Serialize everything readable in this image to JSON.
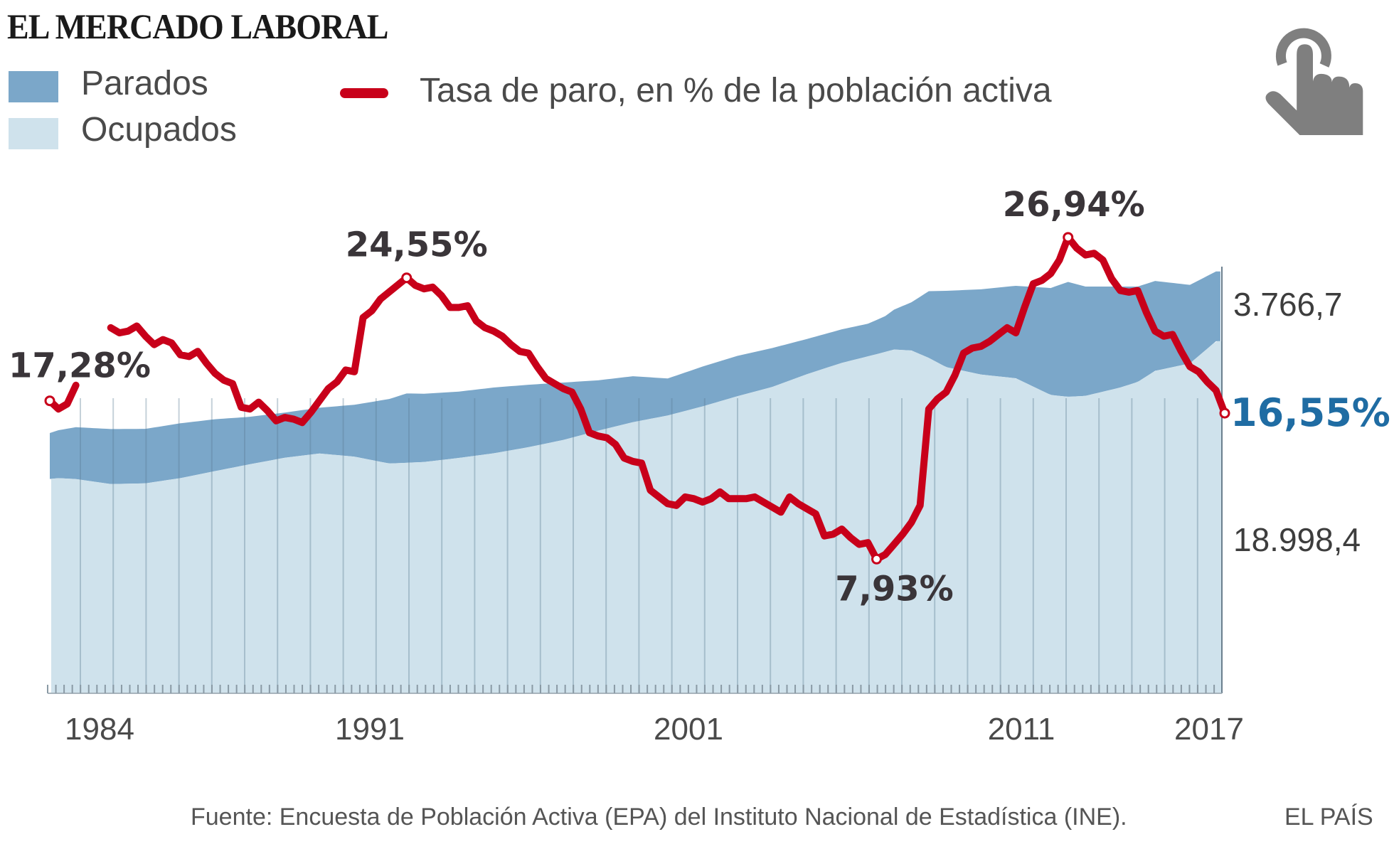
{
  "header": {
    "title": "EL MERCADO LABORAL",
    "legend": [
      {
        "label": "Parados",
        "color": "#7ba7c9"
      },
      {
        "label": "Ocupados",
        "color": "#cfe2ec"
      },
      {
        "label": "Tasa de paro, en % de la población activa",
        "color": "#c8001a"
      }
    ],
    "icon": "touch-hand-icon"
  },
  "chart_data": {
    "type": "area",
    "title": "EL MERCADO LABORAL",
    "xlabel": "",
    "ylabel": "",
    "x_tick_labels": [
      "1984",
      "1991",
      "2001",
      "2011",
      "2017"
    ],
    "x_range": [
      "1983",
      "2017"
    ],
    "grid": true,
    "series": [
      {
        "name": "Ocupados",
        "type": "area",
        "unit": "miles",
        "color": "#cfe2ec",
        "end_label": "18.998,4",
        "points": [
          [
            1983.0,
            11420
          ],
          [
            1984.0,
            11610
          ],
          [
            1984.5,
            11560
          ],
          [
            1985.5,
            11290
          ],
          [
            1986.5,
            11330
          ],
          [
            1987.5,
            11610
          ],
          [
            1988.5,
            11990
          ],
          [
            1989.5,
            12360
          ],
          [
            1990.5,
            12710
          ],
          [
            1991.5,
            12940
          ],
          [
            1992.5,
            12770
          ],
          [
            1993.5,
            12400
          ],
          [
            1994.5,
            12480
          ],
          [
            1995.5,
            12700
          ],
          [
            1996.5,
            12950
          ],
          [
            1997.5,
            13280
          ],
          [
            1998.5,
            13670
          ],
          [
            1999.5,
            14170
          ],
          [
            2000.5,
            14630
          ],
          [
            2001.5,
            14990
          ],
          [
            2002.5,
            15480
          ],
          [
            2003.5,
            16030
          ],
          [
            2004.5,
            16530
          ],
          [
            2005.5,
            17220
          ],
          [
            2006.5,
            17830
          ],
          [
            2007.5,
            18300
          ],
          [
            2008.0,
            18550
          ],
          [
            2008.5,
            18500
          ],
          [
            2009.0,
            18100
          ],
          [
            2009.5,
            17600
          ],
          [
            2010.5,
            17200
          ],
          [
            2011.5,
            17000
          ],
          [
            2012.5,
            16100
          ],
          [
            2013.0,
            16000
          ],
          [
            2013.5,
            16050
          ],
          [
            2014.5,
            16500
          ],
          [
            2015.0,
            16800
          ],
          [
            2015.5,
            17400
          ],
          [
            2016.5,
            17800
          ],
          [
            2017.25,
            18998
          ]
        ]
      },
      {
        "name": "Parados",
        "type": "area-stacked",
        "unit": "miles",
        "color": "#7ba7c9",
        "end_label": "3.766,7",
        "points": [
          [
            1983.75,
            2480
          ],
          [
            1984.5,
            2800
          ],
          [
            1985.5,
            2970
          ],
          [
            1986.5,
            2940
          ],
          [
            1987.5,
            2960
          ],
          [
            1988.5,
            2800
          ],
          [
            1989.5,
            2560
          ],
          [
            1990.5,
            2440
          ],
          [
            1991.5,
            2470
          ],
          [
            1992.5,
            2800
          ],
          [
            1993.5,
            3480
          ],
          [
            1994.0,
            3740
          ],
          [
            1995.5,
            3580
          ],
          [
            1996.5,
            3550
          ],
          [
            1997.5,
            3370
          ],
          [
            1998.5,
            3100
          ],
          [
            1999.5,
            2720
          ],
          [
            2000.5,
            2480
          ],
          [
            2001.5,
            2000
          ],
          [
            2002.5,
            2150
          ],
          [
            2003.5,
            2180
          ],
          [
            2004.5,
            2100
          ],
          [
            2005.5,
            1900
          ],
          [
            2006.5,
            1810
          ],
          [
            2007.25,
            1760
          ],
          [
            2007.75,
            1930
          ],
          [
            2008.5,
            2600
          ],
          [
            2009.0,
            3600
          ],
          [
            2009.5,
            4120
          ],
          [
            2010.5,
            4600
          ],
          [
            2011.5,
            4990
          ],
          [
            2012.5,
            5770
          ],
          [
            2013.0,
            6200
          ],
          [
            2013.5,
            5900
          ],
          [
            2014.5,
            5450
          ],
          [
            2015.5,
            4850
          ],
          [
            2016.5,
            4240
          ],
          [
            2017.25,
            3767
          ]
        ]
      },
      {
        "name": "Tasa de paro, en % de la población activa",
        "type": "line",
        "unit": "%",
        "color": "#c8001a",
        "points": [
          [
            1983.75,
            17.28
          ],
          [
            1984.0,
            16.8
          ],
          [
            1984.25,
            17.1
          ],
          [
            1984.5,
            18.2
          ],
          [
            1985.0,
            20.8
          ],
          [
            1985.25,
            21.5
          ],
          [
            1985.5,
            21.6
          ],
          [
            1985.75,
            21.3
          ],
          [
            1986.0,
            21.4
          ],
          [
            1986.25,
            21.7
          ],
          [
            1986.5,
            21.1
          ],
          [
            1986.75,
            20.6
          ],
          [
            1987.0,
            20.9
          ],
          [
            1987.25,
            20.7
          ],
          [
            1987.5,
            20.0
          ],
          [
            1987.75,
            19.9
          ],
          [
            1988.0,
            20.2
          ],
          [
            1988.25,
            19.5
          ],
          [
            1988.5,
            18.9
          ],
          [
            1988.75,
            18.5
          ],
          [
            1989.0,
            18.3
          ],
          [
            1989.25,
            16.9
          ],
          [
            1989.5,
            16.8
          ],
          [
            1989.75,
            17.2
          ],
          [
            1990.0,
            16.7
          ],
          [
            1990.25,
            16.1
          ],
          [
            1990.5,
            16.3
          ],
          [
            1990.75,
            16.2
          ],
          [
            1991.0,
            16.0
          ],
          [
            1991.25,
            16.6
          ],
          [
            1991.5,
            17.3
          ],
          [
            1991.75,
            18.0
          ],
          [
            1992.0,
            18.4
          ],
          [
            1992.25,
            19.1
          ],
          [
            1992.5,
            19.0
          ],
          [
            1992.75,
            22.2
          ],
          [
            1993.0,
            22.6
          ],
          [
            1993.25,
            23.3
          ],
          [
            1994.0,
            24.55
          ],
          [
            1994.25,
            24.1
          ],
          [
            1994.5,
            23.9
          ],
          [
            1994.75,
            24.0
          ],
          [
            1995.0,
            23.5
          ],
          [
            1995.25,
            22.8
          ],
          [
            1995.5,
            22.8
          ],
          [
            1995.75,
            22.9
          ],
          [
            1996.0,
            22.0
          ],
          [
            1996.25,
            21.6
          ],
          [
            1996.5,
            21.4
          ],
          [
            1996.75,
            21.1
          ],
          [
            1997.0,
            20.6
          ],
          [
            1997.25,
            20.2
          ],
          [
            1997.5,
            20.1
          ],
          [
            1997.75,
            19.3
          ],
          [
            1998.0,
            18.6
          ],
          [
            1998.25,
            18.3
          ],
          [
            1998.5,
            18.0
          ],
          [
            1998.75,
            17.8
          ],
          [
            1999.0,
            16.8
          ],
          [
            1999.25,
            15.4
          ],
          [
            1999.5,
            15.2
          ],
          [
            1999.75,
            15.1
          ],
          [
            2000.0,
            14.7
          ],
          [
            2000.25,
            13.9
          ],
          [
            2000.5,
            13.7
          ],
          [
            2000.75,
            13.6
          ],
          [
            2001.0,
            12.0
          ],
          [
            2001.25,
            11.6
          ],
          [
            2001.5,
            11.2
          ],
          [
            2001.75,
            11.1
          ],
          [
            2002.0,
            11.6
          ],
          [
            2002.25,
            11.5
          ],
          [
            2002.5,
            11.3
          ],
          [
            2002.75,
            11.5
          ],
          [
            2003.0,
            11.9
          ],
          [
            2003.25,
            11.5
          ],
          [
            2003.5,
            11.5
          ],
          [
            2003.75,
            11.5
          ],
          [
            2004.0,
            11.6
          ],
          [
            2004.25,
            11.3
          ],
          [
            2004.5,
            11.0
          ],
          [
            2004.75,
            10.7
          ],
          [
            2005.0,
            11.6
          ],
          [
            2005.25,
            11.2
          ],
          [
            2005.5,
            10.9
          ],
          [
            2005.75,
            10.6
          ],
          [
            2006.0,
            9.3
          ],
          [
            2006.25,
            9.4
          ],
          [
            2006.5,
            9.7
          ],
          [
            2006.75,
            9.2
          ],
          [
            2007.0,
            8.8
          ],
          [
            2007.25,
            8.9
          ],
          [
            2007.5,
            7.93
          ],
          [
            2007.75,
            8.2
          ],
          [
            2008.0,
            8.8
          ],
          [
            2008.25,
            9.4
          ],
          [
            2008.5,
            10.1
          ],
          [
            2008.75,
            11.1
          ],
          [
            2009.0,
            16.8
          ],
          [
            2009.25,
            17.4
          ],
          [
            2009.5,
            17.8
          ],
          [
            2009.75,
            18.8
          ],
          [
            2010.0,
            20.1
          ],
          [
            2010.25,
            20.4
          ],
          [
            2010.5,
            20.5
          ],
          [
            2010.75,
            20.8
          ],
          [
            2011.0,
            21.2
          ],
          [
            2011.25,
            21.6
          ],
          [
            2011.5,
            21.3
          ],
          [
            2011.75,
            22.8
          ],
          [
            2012.0,
            24.2
          ],
          [
            2012.25,
            24.4
          ],
          [
            2012.5,
            24.8
          ],
          [
            2012.75,
            25.6
          ],
          [
            2013.0,
            26.94
          ],
          [
            2013.25,
            26.3
          ],
          [
            2013.5,
            25.9
          ],
          [
            2013.75,
            26.0
          ],
          [
            2014.0,
            25.6
          ],
          [
            2014.25,
            24.5
          ],
          [
            2014.5,
            23.8
          ],
          [
            2014.75,
            23.7
          ],
          [
            2015.0,
            23.8
          ],
          [
            2015.25,
            22.5
          ],
          [
            2015.5,
            21.4
          ],
          [
            2015.75,
            21.1
          ],
          [
            2016.0,
            21.2
          ],
          [
            2016.25,
            20.2
          ],
          [
            2016.5,
            19.3
          ],
          [
            2016.75,
            19.0
          ],
          [
            2017.0,
            18.4
          ],
          [
            2017.25,
            17.9
          ],
          [
            2017.5,
            16.55
          ]
        ]
      }
    ],
    "annotations": [
      {
        "label": "17,28%",
        "x": 1983.75,
        "y": 17.28,
        "color": "#3a3539",
        "position": "above-right"
      },
      {
        "label": "24,55%",
        "x": 1994.0,
        "y": 24.55,
        "color": "#3a3539",
        "position": "above"
      },
      {
        "label": "7,93%",
        "x": 2007.5,
        "y": 7.93,
        "color": "#3a3539",
        "position": "below"
      },
      {
        "label": "26,94%",
        "x": 2013.0,
        "y": 26.94,
        "color": "#3a3539",
        "position": "above"
      },
      {
        "label": "16,55%",
        "x": 2017.5,
        "y": 16.55,
        "color": "#1f6ca3",
        "position": "right"
      }
    ],
    "end_labels": [
      {
        "label": "3.766,7",
        "series": "Parados"
      },
      {
        "label": "18.998,4",
        "series": "Ocupados"
      }
    ]
  },
  "footer": {
    "source": "Fuente: Encuesta de Población Activa (EPA) del Instituto Nacional de Estadística (INE).",
    "brand": "EL PAÍS"
  }
}
